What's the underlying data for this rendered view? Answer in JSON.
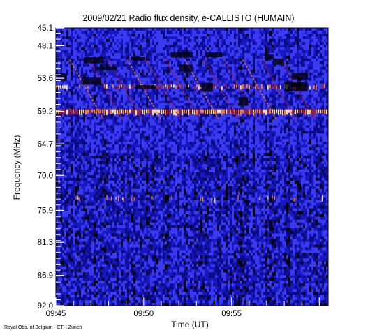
{
  "chart_data": {
    "type": "heatmap",
    "title": "2009/02/21  Radio flux density, e-CALLISTO (HUMAIN)",
    "xlabel": "Time (UT)",
    "ylabel": "Frequency (MHz)",
    "x_ticks": [
      "09:45",
      "09:50",
      "09:55"
    ],
    "x_tick_minutes": [
      0,
      5,
      10
    ],
    "xlim_minutes": [
      0,
      15.5
    ],
    "y_ticks": [
      45.1,
      48.1,
      53.6,
      59.2,
      64.7,
      70.0,
      75.9,
      81.3,
      86.9,
      92.0
    ],
    "y_tick_labels": [
      "45.1",
      "48.1",
      "53.6",
      "59.2",
      "64.7",
      "70.0",
      "75.9",
      "81.3",
      "86.9",
      "92.0"
    ],
    "ylim": [
      45.1,
      92.0
    ],
    "y_direction": "frequency increases downward",
    "colormap": [
      "#000000",
      "#0c0c82",
      "#1c1cd4",
      "#3a3af2",
      "#b01818",
      "#ff7a10",
      "#ffe070"
    ],
    "features": [
      {
        "kind": "continuous emission band",
        "frequency_mhz": 59.2
      },
      {
        "kind": "intermittent emission band",
        "frequency_mhz": 54.8
      },
      {
        "kind": "drifting bursts",
        "frequency_range_mhz": [
          50.5,
          60.5
        ]
      },
      {
        "kind": "interference spikes",
        "frequency_mhz": 73.7
      }
    ]
  },
  "footer": {
    "credit": "Royal Obs. of Belgium - ETH Zurich"
  }
}
